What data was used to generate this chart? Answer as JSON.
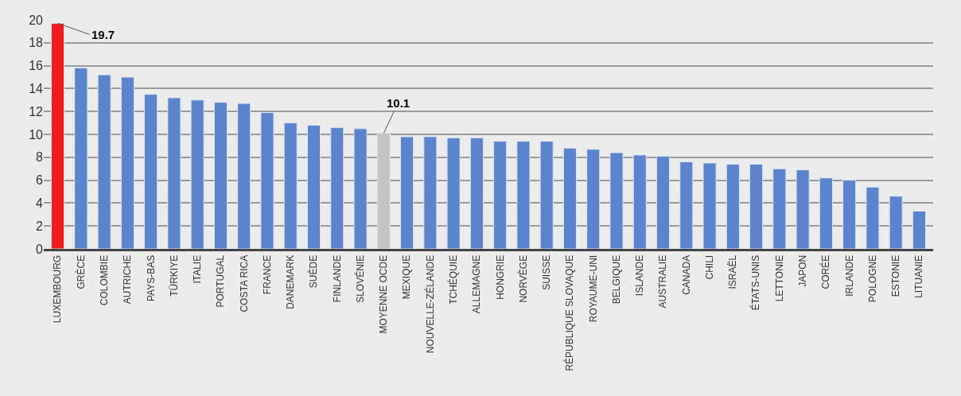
{
  "chart_data": {
    "type": "bar",
    "categories": [
      "LUXEMBOURG",
      "GRÈCE",
      "COLOMBIE",
      "AUTRICHE",
      "PAYS-BAS",
      "TÜRKIYE",
      "ITALIE",
      "PORTUGAL",
      "COSTA RICA",
      "FRANCE",
      "DANEMARK",
      "SUÈDE",
      "FINLANDE",
      "SLOVÉNIE",
      "MOYENNE OCDE",
      "MEXIQUE",
      "NOUVELLE-ZÉLANDE",
      "TCHÉQUIE",
      "ALLEMAGNE",
      "HONGRIE",
      "NORVÈGE",
      "SUISSE",
      "RÉPUBLIQUE SLOVAQUE",
      "ROYAUME-UNI",
      "BELGIQUE",
      "ISLANDE",
      "AUSTRALIE",
      "CANADA",
      "CHILI",
      "ISRAËL",
      "ÉTATS-UNIS",
      "LETTONIE",
      "JAPON",
      "CORÉE",
      "IRLANDE",
      "POLOGNE",
      "ESTONIE",
      "LITUANIE"
    ],
    "values": [
      19.7,
      15.8,
      15.2,
      15.0,
      13.5,
      13.2,
      13.0,
      12.8,
      12.7,
      11.9,
      11.0,
      10.8,
      10.6,
      10.5,
      10.1,
      9.8,
      9.8,
      9.7,
      9.7,
      9.4,
      9.4,
      9.4,
      8.8,
      8.7,
      8.4,
      8.2,
      8.1,
      7.6,
      7.5,
      7.4,
      7.4,
      7.0,
      6.9,
      6.2,
      6.0,
      5.4,
      4.6,
      3.3
    ],
    "colors": [
      "#ee1c1c",
      "#5b84cc",
      "#5b84cc",
      "#5b84cc",
      "#5b84cc",
      "#5b84cc",
      "#5b84cc",
      "#5b84cc",
      "#5b84cc",
      "#5b84cc",
      "#5b84cc",
      "#5b84cc",
      "#5b84cc",
      "#5b84cc",
      "#c4c4c4",
      "#5b84cc",
      "#5b84cc",
      "#5b84cc",
      "#5b84cc",
      "#5b84cc",
      "#5b84cc",
      "#5b84cc",
      "#5b84cc",
      "#5b84cc",
      "#5b84cc",
      "#5b84cc",
      "#5b84cc",
      "#5b84cc",
      "#5b84cc",
      "#5b84cc",
      "#5b84cc",
      "#5b84cc",
      "#5b84cc",
      "#5b84cc",
      "#5b84cc",
      "#5b84cc",
      "#5b84cc",
      "#5b84cc"
    ],
    "value_labels": [
      "19.7",
      null,
      null,
      null,
      null,
      null,
      null,
      null,
      null,
      null,
      null,
      null,
      null,
      null,
      "10.1",
      null,
      null,
      null,
      null,
      null,
      null,
      null,
      null,
      null,
      null,
      null,
      null,
      null,
      null,
      null,
      null,
      null,
      null,
      null,
      null,
      null,
      null,
      null
    ],
    "ylim": [
      0,
      20
    ],
    "yticks": [
      0,
      2,
      4,
      6,
      8,
      10,
      12,
      14,
      16,
      18,
      20
    ],
    "grid": "y",
    "legend": false
  }
}
